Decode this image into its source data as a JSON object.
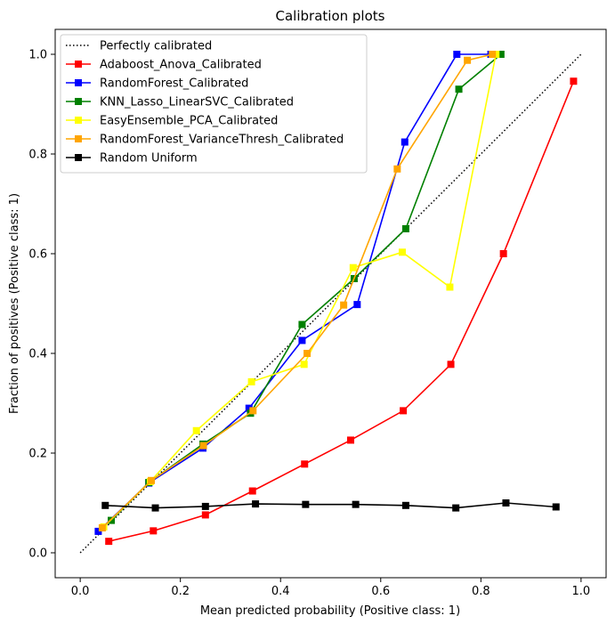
{
  "chart_data": {
    "type": "line",
    "title": "Calibration plots",
    "xlabel": "Mean predicted probability (Positive class: 1)",
    "ylabel": "Fraction of positives (Positive class: 1)",
    "xlim": [
      -0.05,
      1.05
    ],
    "ylim": [
      -0.05,
      1.05
    ],
    "xticks": [
      "0.0",
      "0.2",
      "0.4",
      "0.6",
      "0.8",
      "1.0"
    ],
    "yticks": [
      "0.0",
      "0.2",
      "0.4",
      "0.6",
      "0.8",
      "1.0"
    ],
    "grid": false,
    "legend_position": "upper-left",
    "reference_line": {
      "name": "Perfectly calibrated",
      "color": "#000000",
      "style": "dotted",
      "x": [
        0,
        1
      ],
      "y": [
        0,
        1
      ]
    },
    "series": [
      {
        "name": "Adaboost_Anova_Calibrated",
        "color": "#ff0000",
        "x": [
          0.057,
          0.146,
          0.25,
          0.344,
          0.448,
          0.54,
          0.645,
          0.74,
          0.845,
          0.985
        ],
        "y": [
          0.023,
          0.044,
          0.076,
          0.124,
          0.178,
          0.226,
          0.285,
          0.378,
          0.6,
          0.946
        ]
      },
      {
        "name": "RandomForest_Calibrated",
        "color": "#0000ff",
        "x": [
          0.036,
          0.137,
          0.245,
          0.337,
          0.443,
          0.553,
          0.648,
          0.752,
          0.82
        ],
        "y": [
          0.043,
          0.14,
          0.21,
          0.29,
          0.426,
          0.498,
          0.824,
          1.0,
          1.0
        ]
      },
      {
        "name": "KNN_Lasso_LinearSVC_Calibrated",
        "color": "#008000",
        "x": [
          0.062,
          0.137,
          0.245,
          0.34,
          0.443,
          0.547,
          0.65,
          0.756,
          0.84
        ],
        "y": [
          0.065,
          0.141,
          0.218,
          0.28,
          0.458,
          0.55,
          0.65,
          0.93,
          1.0
        ]
      },
      {
        "name": "EasyEnsemble_PCA_Calibrated",
        "color": "#ffff00",
        "x": [
          0.047,
          0.14,
          0.232,
          0.342,
          0.447,
          0.545,
          0.643,
          0.738,
          0.83
        ],
        "y": [
          0.052,
          0.143,
          0.245,
          0.343,
          0.378,
          0.572,
          0.603,
          0.533,
          1.0
        ]
      },
      {
        "name": "RandomForest_VarianceThresh_Calibrated",
        "color": "#ffa500",
        "x": [
          0.044,
          0.142,
          0.246,
          0.345,
          0.453,
          0.526,
          0.633,
          0.773,
          0.823
        ],
        "y": [
          0.05,
          0.145,
          0.215,
          0.285,
          0.4,
          0.497,
          0.77,
          0.988,
          1.0
        ]
      },
      {
        "name": "Random Uniform",
        "color": "#000000",
        "x": [
          0.05,
          0.15,
          0.25,
          0.35,
          0.45,
          0.55,
          0.65,
          0.75,
          0.85,
          0.95
        ],
        "y": [
          0.095,
          0.09,
          0.093,
          0.098,
          0.097,
          0.097,
          0.095,
          0.09,
          0.1,
          0.092
        ]
      }
    ]
  }
}
